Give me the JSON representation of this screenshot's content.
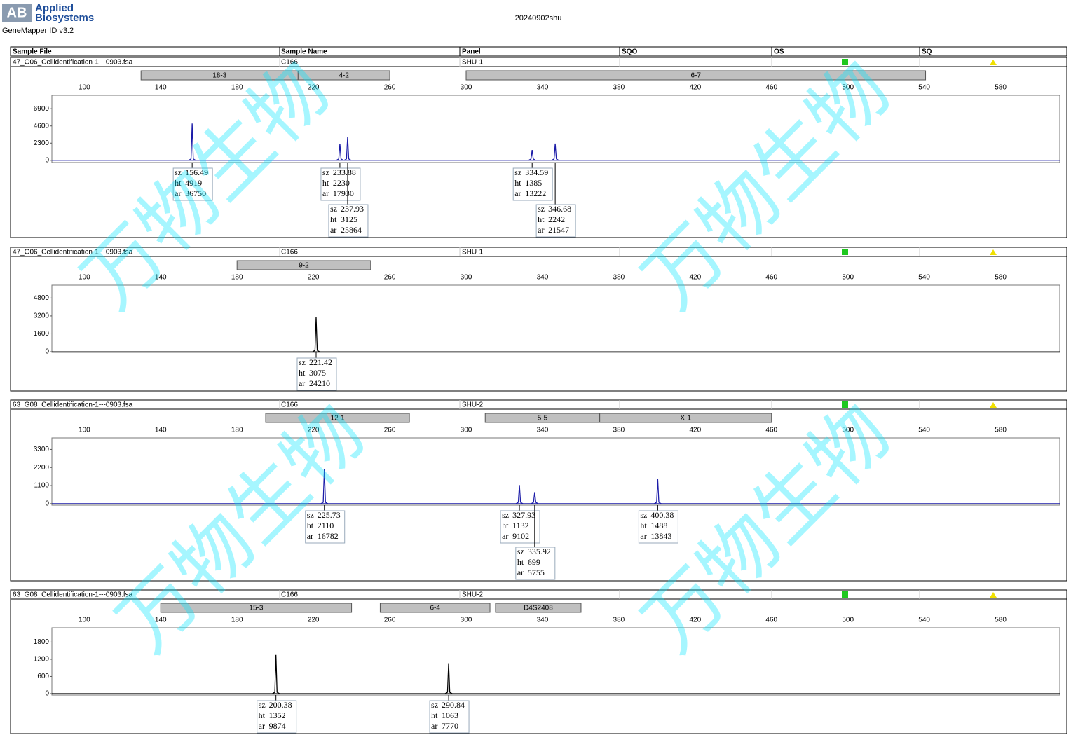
{
  "header": {
    "logo_mark": "AB",
    "brand": [
      "Applied",
      "Biosystems"
    ],
    "software": "GeneMapper ID v3.2",
    "title": "20240902shu"
  },
  "columns": [
    "Sample File",
    "Sample Name",
    "Panel",
    "SQO",
    "OS",
    "SQ"
  ],
  "peak_fields": [
    "sz",
    "ht",
    "ar"
  ],
  "watermark": "万物生物",
  "chart_data": [
    {
      "type": "line",
      "sample_file": "47_G06_Cellidentification-1---0903.fsa",
      "sample_name": "C166",
      "panel": "SHU-1",
      "color": "#1c1ca8",
      "markers": [
        {
          "name": "18-3",
          "range": [
            129.7,
            212
          ]
        },
        {
          "name": "4-2",
          "range": [
            212,
            260
          ]
        },
        {
          "name": "6-7",
          "range": [
            300,
            540.7
          ]
        }
      ],
      "xlim": [
        83,
        611
      ],
      "xticks": [
        100,
        140,
        180,
        220,
        260,
        300,
        340,
        380,
        420,
        460,
        500,
        540,
        580
      ],
      "ylim": [
        -300,
        8700
      ],
      "yticks": [
        0,
        2300,
        4600,
        6900
      ],
      "peaks": [
        {
          "sz": 156.49,
          "ht": 4919,
          "ar": 36750
        },
        {
          "sz": 233.88,
          "ht": 2230,
          "ar": 17930
        },
        {
          "sz": 237.93,
          "ht": 3125,
          "ar": 25864
        },
        {
          "sz": 334.59,
          "ht": 1385,
          "ar": 13222
        },
        {
          "sz": 346.68,
          "ht": 2242,
          "ar": 21547
        }
      ]
    },
    {
      "type": "line",
      "sample_file": "47_G06_Cellidentification-1---0903.fsa",
      "sample_name": "C166",
      "panel": "SHU-1",
      "color": "#000000",
      "markers": [
        {
          "name": "9-2",
          "range": [
            180,
            250
          ]
        }
      ],
      "xlim": [
        83,
        611
      ],
      "xticks": [
        100,
        140,
        180,
        220,
        260,
        300,
        340,
        380,
        420,
        460,
        500,
        540,
        580
      ],
      "ylim": [
        -60,
        5950
      ],
      "yticks": [
        0,
        1600,
        3200,
        4800
      ],
      "peaks": [
        {
          "sz": 221.42,
          "ht": 3075,
          "ar": 24210
        }
      ]
    },
    {
      "type": "line",
      "sample_file": "63_G08_Cellidentification-1---0903.fsa",
      "sample_name": "C166",
      "panel": "SHU-2",
      "color": "#1c1ca8",
      "markers": [
        {
          "name": "12-1",
          "range": [
            195,
            270.3
          ]
        },
        {
          "name": "5-5",
          "range": [
            310,
            370
          ]
        },
        {
          "name": "X-1",
          "range": [
            370,
            460
          ]
        }
      ],
      "xlim": [
        83,
        611
      ],
      "xticks": [
        100,
        140,
        180,
        220,
        260,
        300,
        340,
        380,
        420,
        460,
        500,
        540,
        580
      ],
      "ylim": [
        -90,
        4000
      ],
      "yticks": [
        0,
        1100,
        2200,
        3300
      ],
      "peaks": [
        {
          "sz": 225.73,
          "ht": 2110,
          "ar": 16782
        },
        {
          "sz": 327.93,
          "ht": 1132,
          "ar": 9102
        },
        {
          "sz": 335.92,
          "ht": 699,
          "ar": 5755
        },
        {
          "sz": 400.38,
          "ht": 1488,
          "ar": 13843
        }
      ]
    },
    {
      "type": "line",
      "sample_file": "63_G08_Cellidentification-1---0903.fsa",
      "sample_name": "C166",
      "panel": "SHU-2",
      "color": "#000000",
      "markers": [
        {
          "name": "15-3",
          "range": [
            140,
            240
          ]
        },
        {
          "name": "6-4",
          "range": [
            255,
            312.5
          ]
        },
        {
          "name": "D4S2408",
          "range": [
            315.4,
            360.2
          ]
        }
      ],
      "xlim": [
        83,
        611
      ],
      "xticks": [
        100,
        140,
        180,
        220,
        260,
        300,
        340,
        380,
        420,
        460,
        500,
        540,
        580
      ],
      "ylim": [
        -50,
        2300
      ],
      "yticks": [
        0,
        600,
        1200,
        1800
      ],
      "peaks": [
        {
          "sz": 200.38,
          "ht": 1352,
          "ar": 9874
        },
        {
          "sz": 290.84,
          "ht": 1063,
          "ar": 7770
        }
      ]
    }
  ]
}
